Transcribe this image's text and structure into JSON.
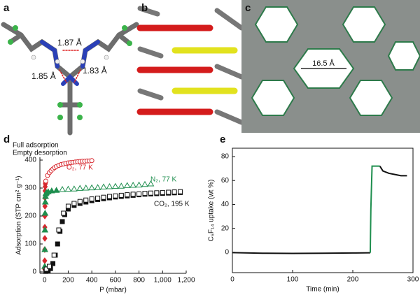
{
  "panel_labels": [
    "a",
    "b",
    "c",
    "d",
    "e"
  ],
  "figure_a": {
    "distances": [
      "1.87 Å",
      "1.85 Å",
      "1.83 Å"
    ]
  },
  "figure_c": {
    "pore": "16.5 Å"
  },
  "chart_data": [
    {
      "type": "scatter",
      "x_label": "P (mbar)",
      "y_label": "Adsorption (STP cm² g⁻¹)",
      "annotations": [
        "Full adsorption",
        "Empty desorption"
      ],
      "xlim": [
        -40,
        1200
      ],
      "ylim": [
        -5,
        410
      ],
      "xticks": [
        0,
        200,
        400,
        600,
        800,
        {
          "value": 1000,
          "label": "1,000"
        },
        {
          "value": 1200,
          "label": "1,200"
        }
      ],
      "yticks": [
        0,
        100,
        200,
        300,
        400
      ],
      "series": [
        {
          "name": "O₂, 77 K",
          "color": "#d7282f",
          "marker": "diamond",
          "filled": true,
          "x": [
            1,
            1,
            1,
            2,
            2,
            2,
            3,
            3,
            4,
            5,
            6,
            8
          ],
          "values": [
            10,
            40,
            80,
            120,
            160,
            200,
            235,
            265,
            290,
            305,
            315,
            320
          ]
        },
        {
          "color": "#d7282f",
          "marker": "circle",
          "filled": false,
          "x": [
            10,
            25,
            40,
            55,
            70,
            85,
            100,
            120,
            140,
            160,
            180,
            200,
            220,
            240,
            260,
            280,
            300,
            320,
            340,
            360,
            380,
            400
          ],
          "values": [
            325,
            345,
            355,
            362,
            368,
            373,
            377,
            381,
            384,
            386,
            388,
            390,
            391,
            392,
            393,
            394,
            395,
            396,
            396,
            397,
            397,
            398
          ]
        },
        {
          "name": "N₂, 77 K",
          "color": "#1e8e4e",
          "marker": "triangle",
          "filled": true,
          "x": [
            1,
            2,
            3,
            4,
            6,
            8,
            10,
            15,
            30,
            60,
            100
          ],
          "values": [
            20,
            80,
            150,
            210,
            250,
            270,
            280,
            283,
            287,
            290,
            292
          ]
        },
        {
          "color": "#1e8e4e",
          "marker": "triangle",
          "filled": false,
          "x": [
            150,
            200,
            250,
            300,
            350,
            400,
            450,
            500,
            550,
            600,
            650,
            700,
            750,
            800,
            850,
            900
          ],
          "values": [
            295,
            296,
            297,
            299,
            300,
            301,
            302,
            304,
            305,
            306,
            307,
            309,
            310,
            311,
            313,
            315
          ]
        },
        {
          "name": "CO₂, 195 K",
          "color": "#111111",
          "marker": "square",
          "filled": true,
          "x": [
            10,
            30,
            50,
            70,
            90,
            110,
            130,
            150,
            170,
            200,
            250,
            300,
            350,
            400,
            450,
            500,
            550,
            600,
            650,
            700,
            750,
            800,
            850,
            900,
            950,
            1000,
            1050,
            1100,
            1150
          ],
          "values": [
            2,
            5,
            12,
            30,
            60,
            100,
            145,
            180,
            205,
            225,
            238,
            245,
            250,
            255,
            259,
            262,
            265,
            268,
            270,
            272,
            274,
            276,
            278,
            279,
            280,
            281,
            282,
            283,
            284
          ]
        },
        {
          "color": "#111111",
          "marker": "square",
          "filled": false,
          "x": [
            15,
            40,
            80,
            120,
            160,
            200,
            250,
            300,
            350,
            400,
            450,
            500,
            550,
            600,
            650,
            700,
            750,
            800,
            850,
            900,
            950,
            1000,
            1050,
            1100,
            1150
          ],
          "values": [
            10,
            20,
            60,
            150,
            210,
            235,
            245,
            252,
            257,
            261,
            264,
            267,
            270,
            272,
            274,
            276,
            278,
            279,
            281,
            282,
            283,
            284,
            285,
            286,
            287
          ]
        }
      ]
    },
    {
      "type": "line",
      "x_label": "Time (min)",
      "y_label": "C₆F₁₄ uptake (wt %)",
      "xlim": [
        0,
        300
      ],
      "ylim": [
        -17,
        87
      ],
      "xticks": [
        0,
        100,
        200,
        300
      ],
      "yticks": [
        0,
        20,
        40,
        60,
        80
      ],
      "x": [
        0,
        50,
        100,
        150,
        200,
        229,
        230,
        232,
        240,
        245,
        250,
        260,
        270,
        280,
        290
      ],
      "series": [
        {
          "color": "#111111",
          "values": [
            -0.3,
            -0.8,
            -0.9,
            -0.8,
            -0.6,
            -0.4,
            null,
            null,
            null,
            72,
            68,
            66,
            65,
            64,
            64
          ]
        },
        {
          "color": "#1e8e4e",
          "values": [
            null,
            null,
            null,
            null,
            null,
            -0.4,
            36,
            72,
            72,
            72,
            null,
            null,
            null,
            null,
            null
          ]
        }
      ]
    }
  ]
}
